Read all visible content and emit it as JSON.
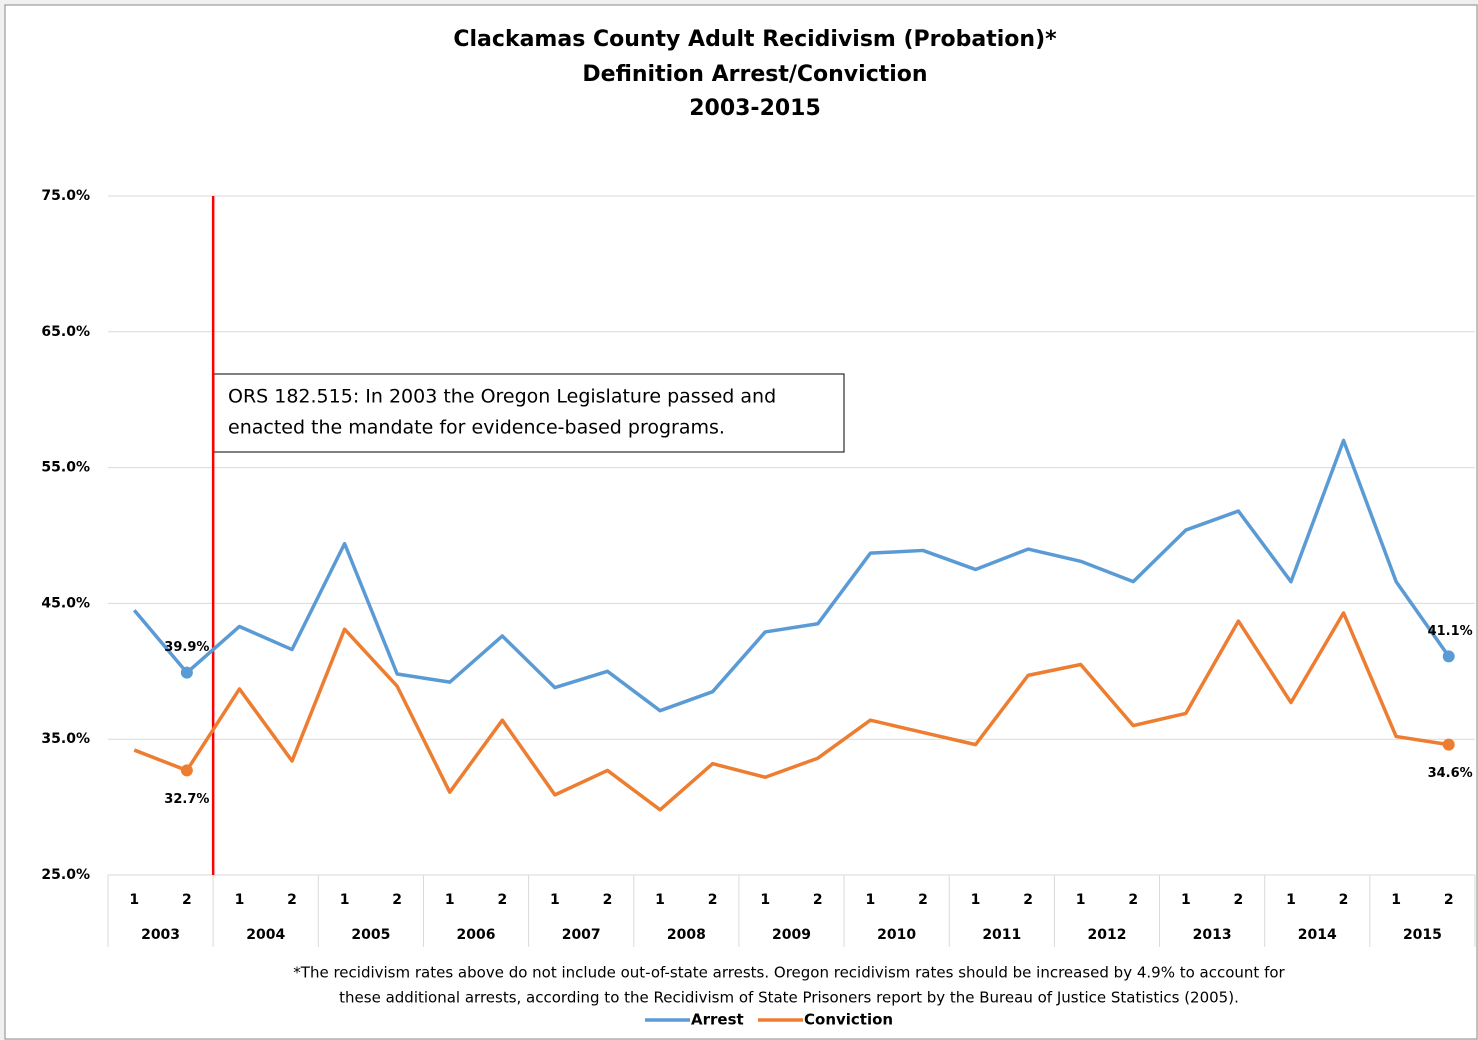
{
  "chart_data": {
    "type": "line",
    "title": [
      "Clackamas County Adult Recidivism (Probation)*",
      "Definition Arrest/Conviction",
      "2003-2015"
    ],
    "categories": [
      "1",
      "2",
      "1",
      "2",
      "1",
      "2",
      "1",
      "2",
      "1",
      "2",
      "1",
      "2",
      "1",
      "2",
      "1",
      "2",
      "1",
      "2",
      "1",
      "2",
      "1",
      "2",
      "1",
      "2",
      "1",
      "2"
    ],
    "groups": [
      "2003",
      "2004",
      "2005",
      "2006",
      "2007",
      "2008",
      "2009",
      "2010",
      "2011",
      "2012",
      "2013",
      "2014",
      "2015"
    ],
    "series": [
      {
        "name": "Arrest",
        "color": "#5b9bd5",
        "values": [
          44.5,
          39.9,
          43.3,
          41.6,
          49.4,
          39.8,
          39.2,
          42.6,
          38.8,
          40.0,
          37.1,
          38.5,
          42.9,
          43.5,
          48.7,
          48.9,
          47.5,
          49.0,
          48.1,
          46.6,
          50.4,
          51.8,
          46.6,
          57.0,
          46.6,
          41.1
        ],
        "value_labels": [
          null,
          "39.9%",
          null,
          null,
          null,
          null,
          null,
          null,
          null,
          null,
          null,
          null,
          null,
          null,
          null,
          null,
          null,
          null,
          null,
          null,
          null,
          null,
          null,
          null,
          null,
          "41.1%"
        ]
      },
      {
        "name": "Conviction",
        "color": "#ed7d31",
        "values": [
          34.2,
          32.7,
          38.7,
          33.4,
          43.1,
          38.9,
          31.1,
          36.4,
          30.9,
          32.7,
          29.8,
          33.2,
          32.2,
          33.6,
          36.4,
          35.5,
          34.6,
          39.7,
          40.5,
          36.0,
          36.9,
          43.7,
          37.7,
          44.3,
          35.2,
          34.6
        ],
        "value_labels": [
          null,
          "32.7%",
          null,
          null,
          null,
          null,
          null,
          null,
          null,
          null,
          null,
          null,
          null,
          null,
          null,
          null,
          null,
          null,
          null,
          null,
          null,
          null,
          null,
          null,
          null,
          "34.6%"
        ]
      }
    ],
    "ylim": [
      25,
      75
    ],
    "yticks": [
      {
        "value": 25,
        "label": "25.0%"
      },
      {
        "value": 35,
        "label": "35.0%"
      },
      {
        "value": 45,
        "label": "45.0%"
      },
      {
        "value": 55,
        "label": "55.0%"
      },
      {
        "value": 65,
        "label": "65.0%"
      },
      {
        "value": 75,
        "label": "75.0%"
      }
    ],
    "grid": true,
    "annotation": [
      "ORS 182.515: In 2003 the Oregon Legislature passed and",
      "enacted the mandate for evidence-based programs."
    ],
    "footnote": [
      "*The recidivism rates above do not include out-of-state arrests. Oregon recidivism rates should be increased by 4.9% to account for",
      "these additional arrests, according to the Recidivism of State Prisoners report by the Bureau of Justice Statistics (2005)."
    ],
    "legend": "bottom"
  }
}
